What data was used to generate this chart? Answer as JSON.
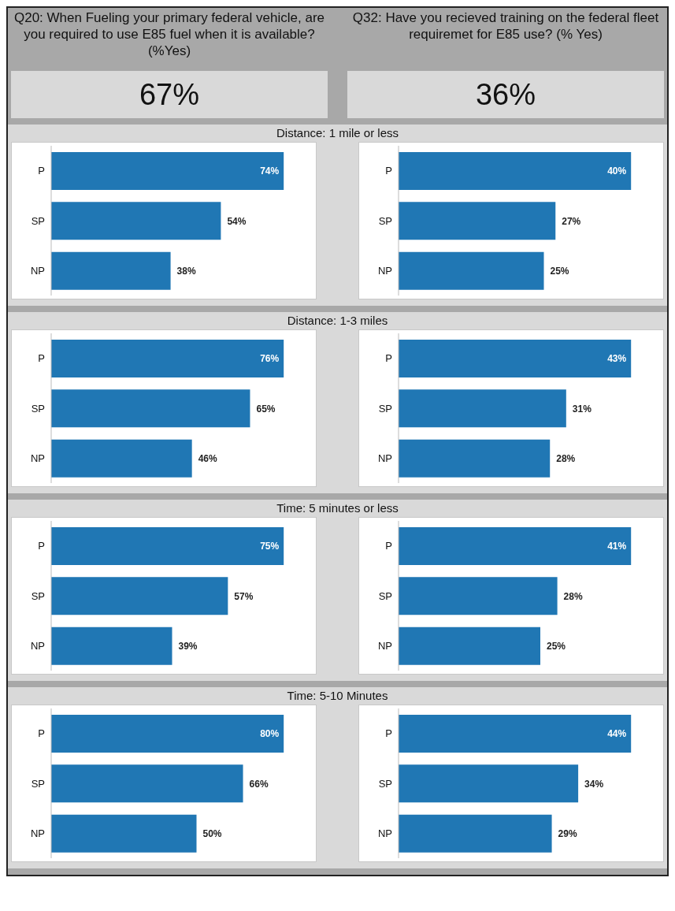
{
  "chart_data": [
    {
      "type": "other",
      "title": "Q20: When Fueling your primary federal vehicle, are you required to use E85 fuel when it is available? (%Yes)",
      "annotations": [
        "67%"
      ]
    },
    {
      "type": "other",
      "title": "Q32: Have you recieved training on the federal fleet requiremet for E85 use? (% Yes)",
      "annotations": [
        "36%"
      ]
    },
    {
      "type": "bar",
      "orientation": "horizontal",
      "title": "Distance: 1 mile or less",
      "categories": [
        "P",
        "SP",
        "NP"
      ],
      "values": [
        74,
        54,
        38
      ],
      "value_labels": [
        "74%",
        "54%",
        "38%"
      ],
      "color": "#2077b4"
    },
    {
      "type": "bar",
      "orientation": "horizontal",
      "categories": [
        "P",
        "SP",
        "NP"
      ],
      "values": [
        40,
        27,
        25
      ],
      "value_labels": [
        "40%",
        "27%",
        "25%"
      ],
      "color": "#2077b4"
    },
    {
      "type": "bar",
      "orientation": "horizontal",
      "title": "Distance: 1-3 miles",
      "categories": [
        "P",
        "SP",
        "NP"
      ],
      "values": [
        76,
        65,
        46
      ],
      "value_labels": [
        "76%",
        "65%",
        "46%"
      ],
      "color": "#2077b4"
    },
    {
      "type": "bar",
      "orientation": "horizontal",
      "categories": [
        "P",
        "SP",
        "NP"
      ],
      "values": [
        43,
        31,
        28
      ],
      "value_labels": [
        "43%",
        "31%",
        "28%"
      ],
      "color": "#2077b4"
    },
    {
      "type": "bar",
      "orientation": "horizontal",
      "title": "Time: 5 minutes or less",
      "categories": [
        "P",
        "SP",
        "NP"
      ],
      "values": [
        75,
        57,
        39
      ],
      "value_labels": [
        "75%",
        "57%",
        "39%"
      ],
      "color": "#2077b4"
    },
    {
      "type": "bar",
      "orientation": "horizontal",
      "categories": [
        "P",
        "SP",
        "NP"
      ],
      "values": [
        41,
        28,
        25
      ],
      "value_labels": [
        "41%",
        "28%",
        "25%"
      ],
      "color": "#2077b4"
    },
    {
      "type": "bar",
      "orientation": "horizontal",
      "title": "Time: 5-10 Minutes",
      "categories": [
        "P",
        "SP",
        "NP"
      ],
      "values": [
        80,
        66,
        50
      ],
      "value_labels": [
        "80%",
        "66%",
        "50%"
      ],
      "color": "#2077b4"
    },
    {
      "type": "bar",
      "orientation": "horizontal",
      "categories": [
        "P",
        "SP",
        "NP"
      ],
      "values": [
        44,
        34,
        29
      ],
      "value_labels": [
        "44%",
        "34%",
        "29%"
      ],
      "color": "#2077b4"
    }
  ]
}
